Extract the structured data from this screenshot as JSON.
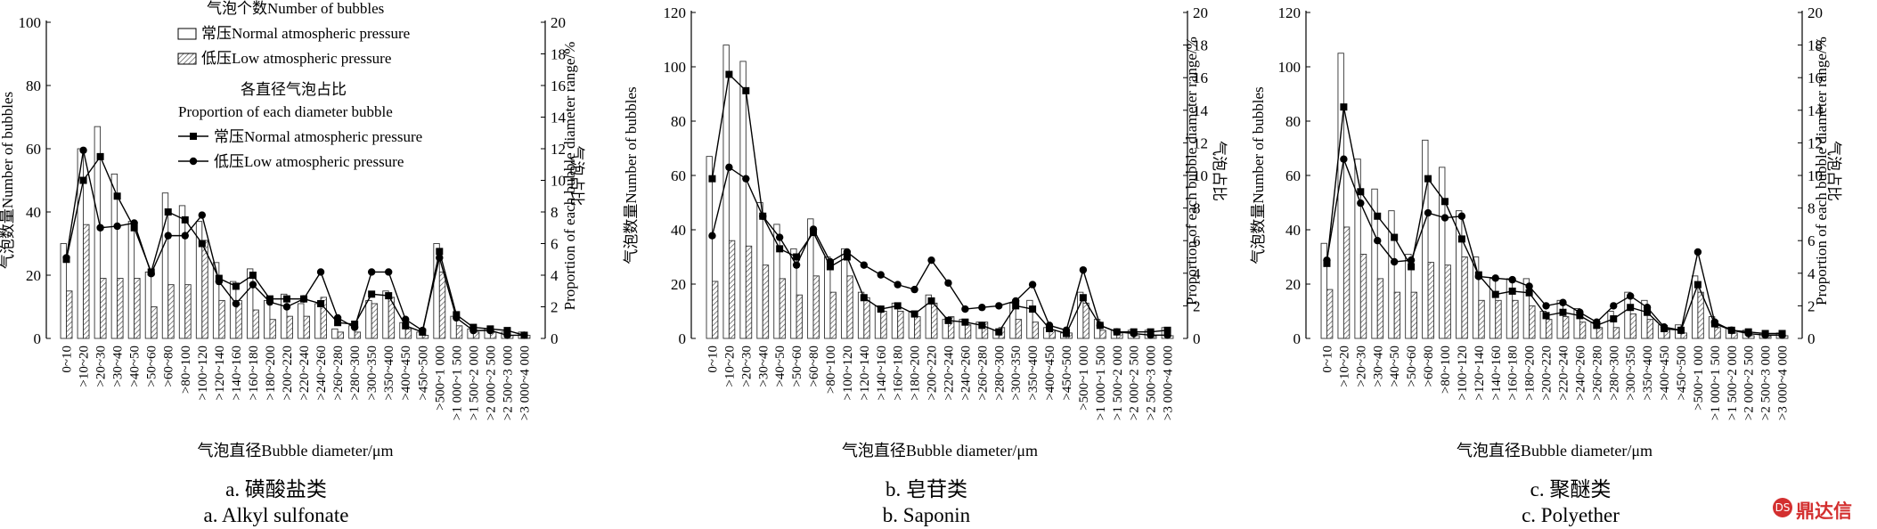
{
  "common": {
    "ylabel_left": "气泡数量Number of bubbles",
    "ylabel_right_cn": "气泡占比",
    "ylabel_right_en": "Proportion of each bubble diameter range/%",
    "xlabel": "气泡直径Bubble diameter/μm",
    "categories": [
      "0~10",
      ">10~20",
      ">20~30",
      ">30~40",
      ">40~50",
      ">50~60",
      ">60~80",
      ">80~100",
      ">100~120",
      ">120~140",
      ">140~160",
      ">160~180",
      ">180~200",
      ">200~220",
      ">220~240",
      ">240~260",
      ">260~280",
      ">280~300",
      ">300~350",
      ">350~400",
      ">400~450",
      ">450~500",
      ">500~1 000",
      ">1 000~1 500",
      ">1 500~2 000",
      ">2 000~2 500",
      ">2 500~3 000",
      ">3 000~4 000"
    ]
  },
  "legend": {
    "title1": "气泡个数Number of bubbles",
    "bar_normal": "常压Normal atmospheric pressure",
    "bar_low": "低压Low atmospheric pressure",
    "title2_cn": "各直径气泡占比",
    "title2_en": "Proportion of each diameter bubble",
    "line_normal": "常压Normal atmospheric pressure",
    "line_low": "低压Low atmospheric pressure"
  },
  "captions": [
    {
      "cn": "a. 磺酸盐类",
      "en": "a. Alkyl sulfonate"
    },
    {
      "cn": "b. 皂苷类",
      "en": "b. Saponin"
    },
    {
      "cn": "c. 聚醚类",
      "en": "c. Polyether"
    }
  ],
  "watermark": {
    "text": "鼎达信",
    "mark": "DS"
  },
  "chart_data": [
    {
      "type": "bar",
      "title": "",
      "ylim_left": [
        0,
        100
      ],
      "yticks_left": [
        0,
        20,
        40,
        60,
        80,
        100
      ],
      "ylim_right": [
        0,
        20
      ],
      "yticks_right": [
        0,
        2,
        4,
        6,
        8,
        10,
        12,
        14,
        16,
        18,
        20
      ],
      "series": [
        {
          "name": "常压Normal atmospheric pressure",
          "kind": "bar",
          "axis": "left",
          "values": [
            30,
            60,
            67,
            52,
            37,
            21,
            46,
            42,
            37,
            24,
            18,
            22,
            12,
            14,
            11,
            11,
            3,
            4,
            12,
            15,
            5,
            2,
            30,
            7,
            3,
            3,
            2,
            2
          ]
        },
        {
          "name": "低压Low atmospheric pressure",
          "kind": "bar",
          "axis": "left",
          "values": [
            15,
            36,
            19,
            19,
            19,
            10,
            17,
            17,
            31,
            12,
            12,
            9,
            6,
            7,
            7,
            13,
            2,
            2,
            11,
            13,
            3,
            1,
            21,
            4,
            2,
            2,
            1,
            1
          ]
        },
        {
          "name": "常压Normal atmospheric pressure",
          "kind": "line",
          "axis": "right",
          "values": [
            5.0,
            10.0,
            11.5,
            9.0,
            7.0,
            4.2,
            8.0,
            7.5,
            6.0,
            3.8,
            3.3,
            4.0,
            2.5,
            2.5,
            2.5,
            2.2,
            1.0,
            0.9,
            2.8,
            2.7,
            0.8,
            0.4,
            5.5,
            1.5,
            0.7,
            0.6,
            0.5,
            0.2
          ]
        },
        {
          "name": "低压Low atmospheric pressure",
          "kind": "line",
          "axis": "right",
          "values": [
            5.1,
            11.9,
            7.0,
            7.1,
            7.3,
            4.1,
            6.5,
            6.5,
            7.8,
            3.6,
            2.2,
            3.4,
            2.3,
            2.0,
            2.5,
            4.2,
            1.3,
            0.7,
            4.2,
            4.2,
            1.2,
            0.5,
            5.1,
            1.3,
            0.5,
            0.5,
            0.2,
            0.2
          ]
        }
      ]
    },
    {
      "type": "bar",
      "title": "",
      "ylim_left": [
        0,
        120
      ],
      "yticks_left": [
        0,
        20,
        40,
        60,
        80,
        100,
        120
      ],
      "ylim_right": [
        0,
        20
      ],
      "yticks_right": [
        0,
        2,
        4,
        6,
        8,
        10,
        12,
        14,
        16,
        18,
        20
      ],
      "series": [
        {
          "name": "常压Normal atmospheric pressure",
          "kind": "bar",
          "axis": "left",
          "values": [
            67,
            108,
            102,
            50,
            42,
            33,
            44,
            30,
            33,
            17,
            12,
            13,
            10,
            16,
            7,
            7,
            6,
            3,
            13,
            14,
            4,
            2,
            17,
            7,
            3,
            3,
            3,
            4
          ]
        },
        {
          "name": "低压Low atmospheric pressure",
          "kind": "bar",
          "axis": "left",
          "values": [
            21,
            36,
            34,
            27,
            22,
            16,
            23,
            17,
            23,
            15,
            10,
            10,
            8,
            13,
            8,
            5,
            6,
            4,
            7,
            6,
            3,
            2,
            13,
            3,
            2,
            1,
            1,
            1
          ]
        },
        {
          "name": "常压Normal atmospheric pressure",
          "kind": "line",
          "axis": "right",
          "values": [
            9.8,
            16.2,
            15.2,
            7.5,
            5.5,
            5.0,
            6.5,
            4.4,
            5.0,
            2.5,
            1.8,
            2.0,
            1.5,
            2.3,
            1.1,
            1.0,
            0.8,
            0.4,
            2.0,
            1.8,
            0.6,
            0.3,
            2.5,
            0.8,
            0.4,
            0.4,
            0.4,
            0.5
          ]
        },
        {
          "name": "低压Low atmospheric pressure",
          "kind": "line",
          "axis": "right",
          "values": [
            6.3,
            10.5,
            9.8,
            7.5,
            6.2,
            4.5,
            6.7,
            4.7,
            5.3,
            4.5,
            3.9,
            3.3,
            3.0,
            4.8,
            3.4,
            1.8,
            1.9,
            2.0,
            2.3,
            3.3,
            0.8,
            0.5,
            4.2,
            0.8,
            0.4,
            0.3,
            0.2,
            0.2
          ]
        }
      ]
    },
    {
      "type": "bar",
      "title": "",
      "ylim_left": [
        0,
        120
      ],
      "yticks_left": [
        0,
        20,
        40,
        60,
        80,
        100,
        120
      ],
      "ylim_right": [
        0,
        20
      ],
      "yticks_right": [
        0,
        2,
        4,
        6,
        8,
        10,
        12,
        14,
        16,
        18,
        20
      ],
      "series": [
        {
          "name": "常压Normal atmospheric pressure",
          "kind": "bar",
          "axis": "left",
          "values": [
            35,
            105,
            66,
            55,
            47,
            31,
            73,
            63,
            47,
            30,
            22,
            22,
            22,
            10,
            14,
            11,
            6,
            10,
            17,
            14,
            5,
            5,
            23,
            8,
            4,
            3,
            2,
            2
          ]
        },
        {
          "name": "低压Low atmospheric pressure",
          "kind": "bar",
          "axis": "left",
          "values": [
            18,
            41,
            31,
            22,
            17,
            17,
            28,
            27,
            30,
            14,
            14,
            14,
            12,
            7,
            8,
            6,
            4,
            4,
            9,
            7,
            3,
            2,
            17,
            4,
            2,
            1,
            1,
            1
          ]
        },
        {
          "name": "常压Normal atmospheric pressure",
          "kind": "line",
          "axis": "right",
          "values": [
            4.6,
            14.2,
            9.0,
            7.5,
            6.2,
            4.4,
            9.8,
            8.4,
            6.1,
            3.9,
            2.7,
            2.9,
            2.8,
            1.4,
            1.6,
            1.4,
            0.8,
            1.2,
            1.9,
            1.6,
            0.6,
            0.5,
            3.3,
            0.9,
            0.5,
            0.4,
            0.3,
            0.3
          ]
        },
        {
          "name": "低压Low atmospheric pressure",
          "kind": "line",
          "axis": "right",
          "values": [
            4.8,
            11.0,
            8.3,
            6.0,
            4.7,
            4.8,
            7.7,
            7.4,
            7.5,
            3.8,
            3.7,
            3.6,
            3.2,
            2.0,
            2.2,
            1.6,
            1.0,
            2.0,
            2.6,
            1.9,
            0.7,
            0.5,
            5.3,
            1.0,
            0.5,
            0.3,
            0.2,
            0.2
          ]
        }
      ]
    }
  ]
}
